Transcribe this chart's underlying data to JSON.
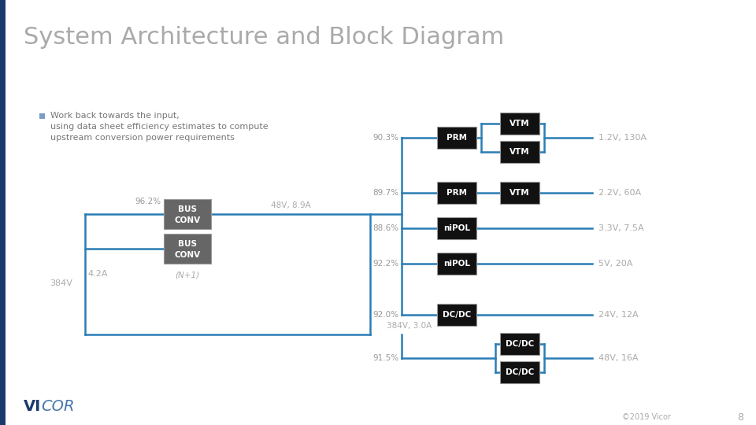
{
  "title": "System Architecture and Block Diagram",
  "title_color": "#aaaaaa",
  "title_fontsize": 22,
  "bg_color": "#ffffff",
  "sidebar_color": "#1a3a6b",
  "line_color": "#2a7db5",
  "bullet_color": "#7a9cc5",
  "bullet_text_color": "#777777",
  "box_fill_dark": "#111111",
  "box_fill_grey": "#666666",
  "box_text_color": "#ffffff",
  "box_border_color": "#999999",
  "label_color": "#aaaaaa",
  "eff_color": "#999999",
  "input_voltage": "384V",
  "input_current": "4.2A",
  "bus_conv_label": "(N+1)",
  "bus_conv_eff": "96.2%",
  "bus_conv_output": "48V, 8.9A",
  "direct_output": "384V, 3.0A",
  "vicor_vi_color": "#1a3a6b",
  "vicor_cor_color": "#4477aa",
  "copyright_text": "©2019 Vicor",
  "page_num": "8",
  "outputs": [
    {
      "eff": "90.3%",
      "type": "PRM+2VTM",
      "label": "1.2V, 130A"
    },
    {
      "eff": "89.7%",
      "type": "PRM+VTM",
      "label": "2.2V, 60A"
    },
    {
      "eff": "88.6%",
      "type": "niPOL",
      "label": "3.3V, 7.5A"
    },
    {
      "eff": "92.2%",
      "type": "niPOL",
      "label": "5V, 20A"
    },
    {
      "eff": "92.0%",
      "type": "DC/DC",
      "label": "24V, 12A"
    },
    {
      "eff": "91.5%",
      "type": "2DC/DC",
      "label": "48V, 16A"
    }
  ]
}
